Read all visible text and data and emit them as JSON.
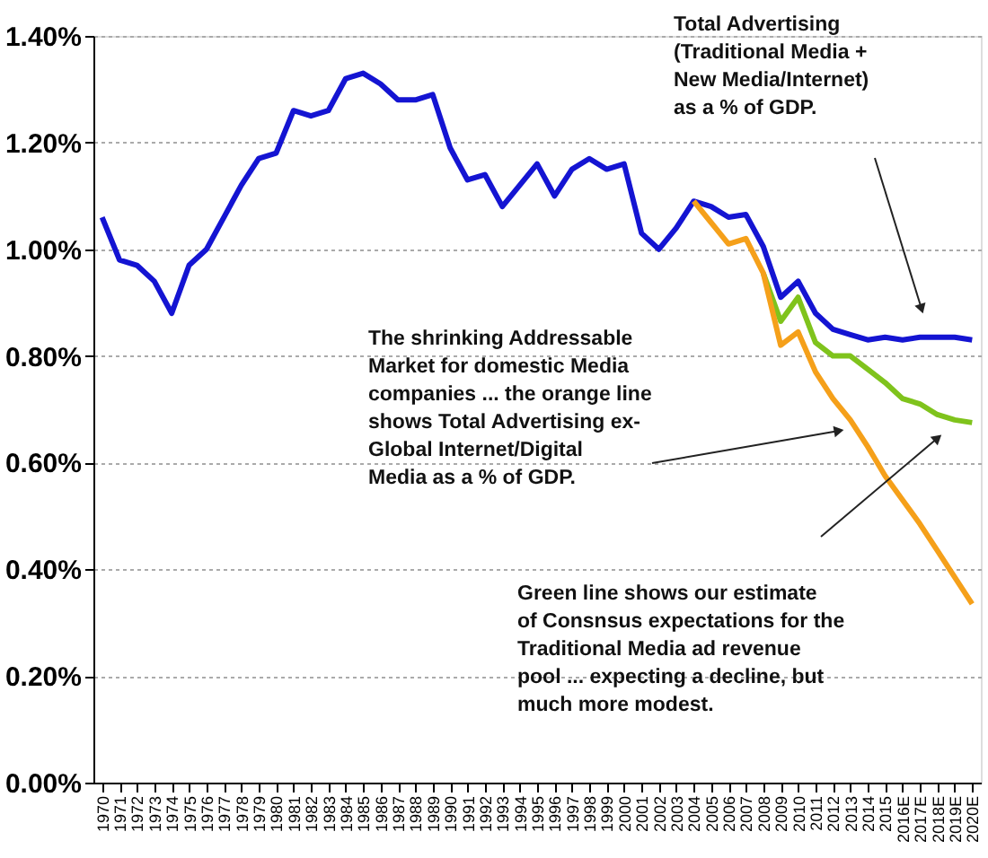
{
  "chart_data": {
    "type": "line",
    "categories": [
      "1970",
      "1971",
      "1972",
      "1973",
      "1974",
      "1975",
      "1976",
      "1977",
      "1978",
      "1979",
      "1980",
      "1981",
      "1982",
      "1983",
      "1984",
      "1985",
      "1986",
      "1987",
      "1988",
      "1989",
      "1990",
      "1991",
      "1992",
      "1993",
      "1994",
      "1995",
      "1996",
      "1997",
      "1998",
      "1999",
      "2000",
      "2001",
      "2002",
      "2003",
      "2004",
      "2005",
      "2006",
      "2007",
      "2008",
      "2009",
      "2010",
      "2011",
      "2012",
      "2013",
      "2014",
      "2015",
      "2016E",
      "2017E",
      "2018E",
      "2019E",
      "2020E"
    ],
    "series": [
      {
        "color": "#1414d2",
        "values": [
          1.06,
          0.98,
          0.97,
          0.94,
          0.88,
          0.97,
          1.0,
          1.06,
          1.12,
          1.17,
          1.18,
          1.26,
          1.25,
          1.26,
          1.32,
          1.33,
          1.31,
          1.28,
          1.28,
          1.29,
          1.19,
          1.13,
          1.14,
          1.08,
          1.12,
          1.16,
          1.1,
          1.15,
          1.17,
          1.15,
          1.16,
          1.03,
          1.0,
          1.04,
          1.09,
          1.08,
          1.06,
          1.065,
          1.005,
          0.91,
          0.94,
          0.88,
          0.85,
          0.84,
          0.83,
          0.835,
          0.83,
          0.835,
          0.835,
          0.835,
          0.83
        ]
      },
      {
        "color": "#7fc31c",
        "values": [
          null,
          null,
          null,
          null,
          null,
          null,
          null,
          null,
          null,
          null,
          null,
          null,
          null,
          null,
          null,
          null,
          null,
          null,
          null,
          null,
          null,
          null,
          null,
          null,
          null,
          null,
          null,
          null,
          null,
          null,
          null,
          null,
          null,
          null,
          null,
          null,
          null,
          null,
          0.955,
          0.865,
          0.91,
          0.825,
          0.8,
          0.8,
          0.775,
          0.75,
          0.72,
          0.71,
          0.69,
          0.68,
          0.675
        ]
      },
      {
        "color": "#f5a01a",
        "values": [
          null,
          null,
          null,
          null,
          null,
          null,
          null,
          null,
          null,
          null,
          null,
          null,
          null,
          null,
          null,
          null,
          null,
          null,
          null,
          null,
          null,
          null,
          null,
          null,
          null,
          null,
          null,
          null,
          null,
          null,
          null,
          null,
          null,
          null,
          1.09,
          1.05,
          1.01,
          1.02,
          0.955,
          0.82,
          0.845,
          0.77,
          0.72,
          0.68,
          0.63,
          0.575,
          0.53,
          0.485,
          0.435,
          0.385,
          0.335
        ]
      }
    ],
    "ylim": [
      0,
      1.4
    ],
    "yticks": [
      {
        "value": 0,
        "label": "0.00%"
      },
      {
        "value": 0.2,
        "label": "0.20%"
      },
      {
        "value": 0.4,
        "label": "0.40%"
      },
      {
        "value": 0.6,
        "label": "0.60%"
      },
      {
        "value": 0.8,
        "label": "0.80%"
      },
      {
        "value": 1.0,
        "label": "1.00%"
      },
      {
        "value": 1.2,
        "label": "1.20%"
      },
      {
        "value": 1.4,
        "label": "1.40%"
      }
    ],
    "grid": "y",
    "marker": "none",
    "line_style": "solid",
    "annotations": [
      "Total  Advertising\n(Traditional  Media +\nNew Media/Internet)\nas a % of GDP.",
      "The shrinking Addressable\nMarket for domestic Media\ncompanies ... the orange line\nshows Total Advertising ex-\nGlobal Internet/Digital\nMedia as a % of GDP.",
      "Green line shows our estimate\nof Consnsus expectations for the\nTraditional  Media ad revenue\npool ... expecting a decline, but\nmuch more modest."
    ]
  }
}
